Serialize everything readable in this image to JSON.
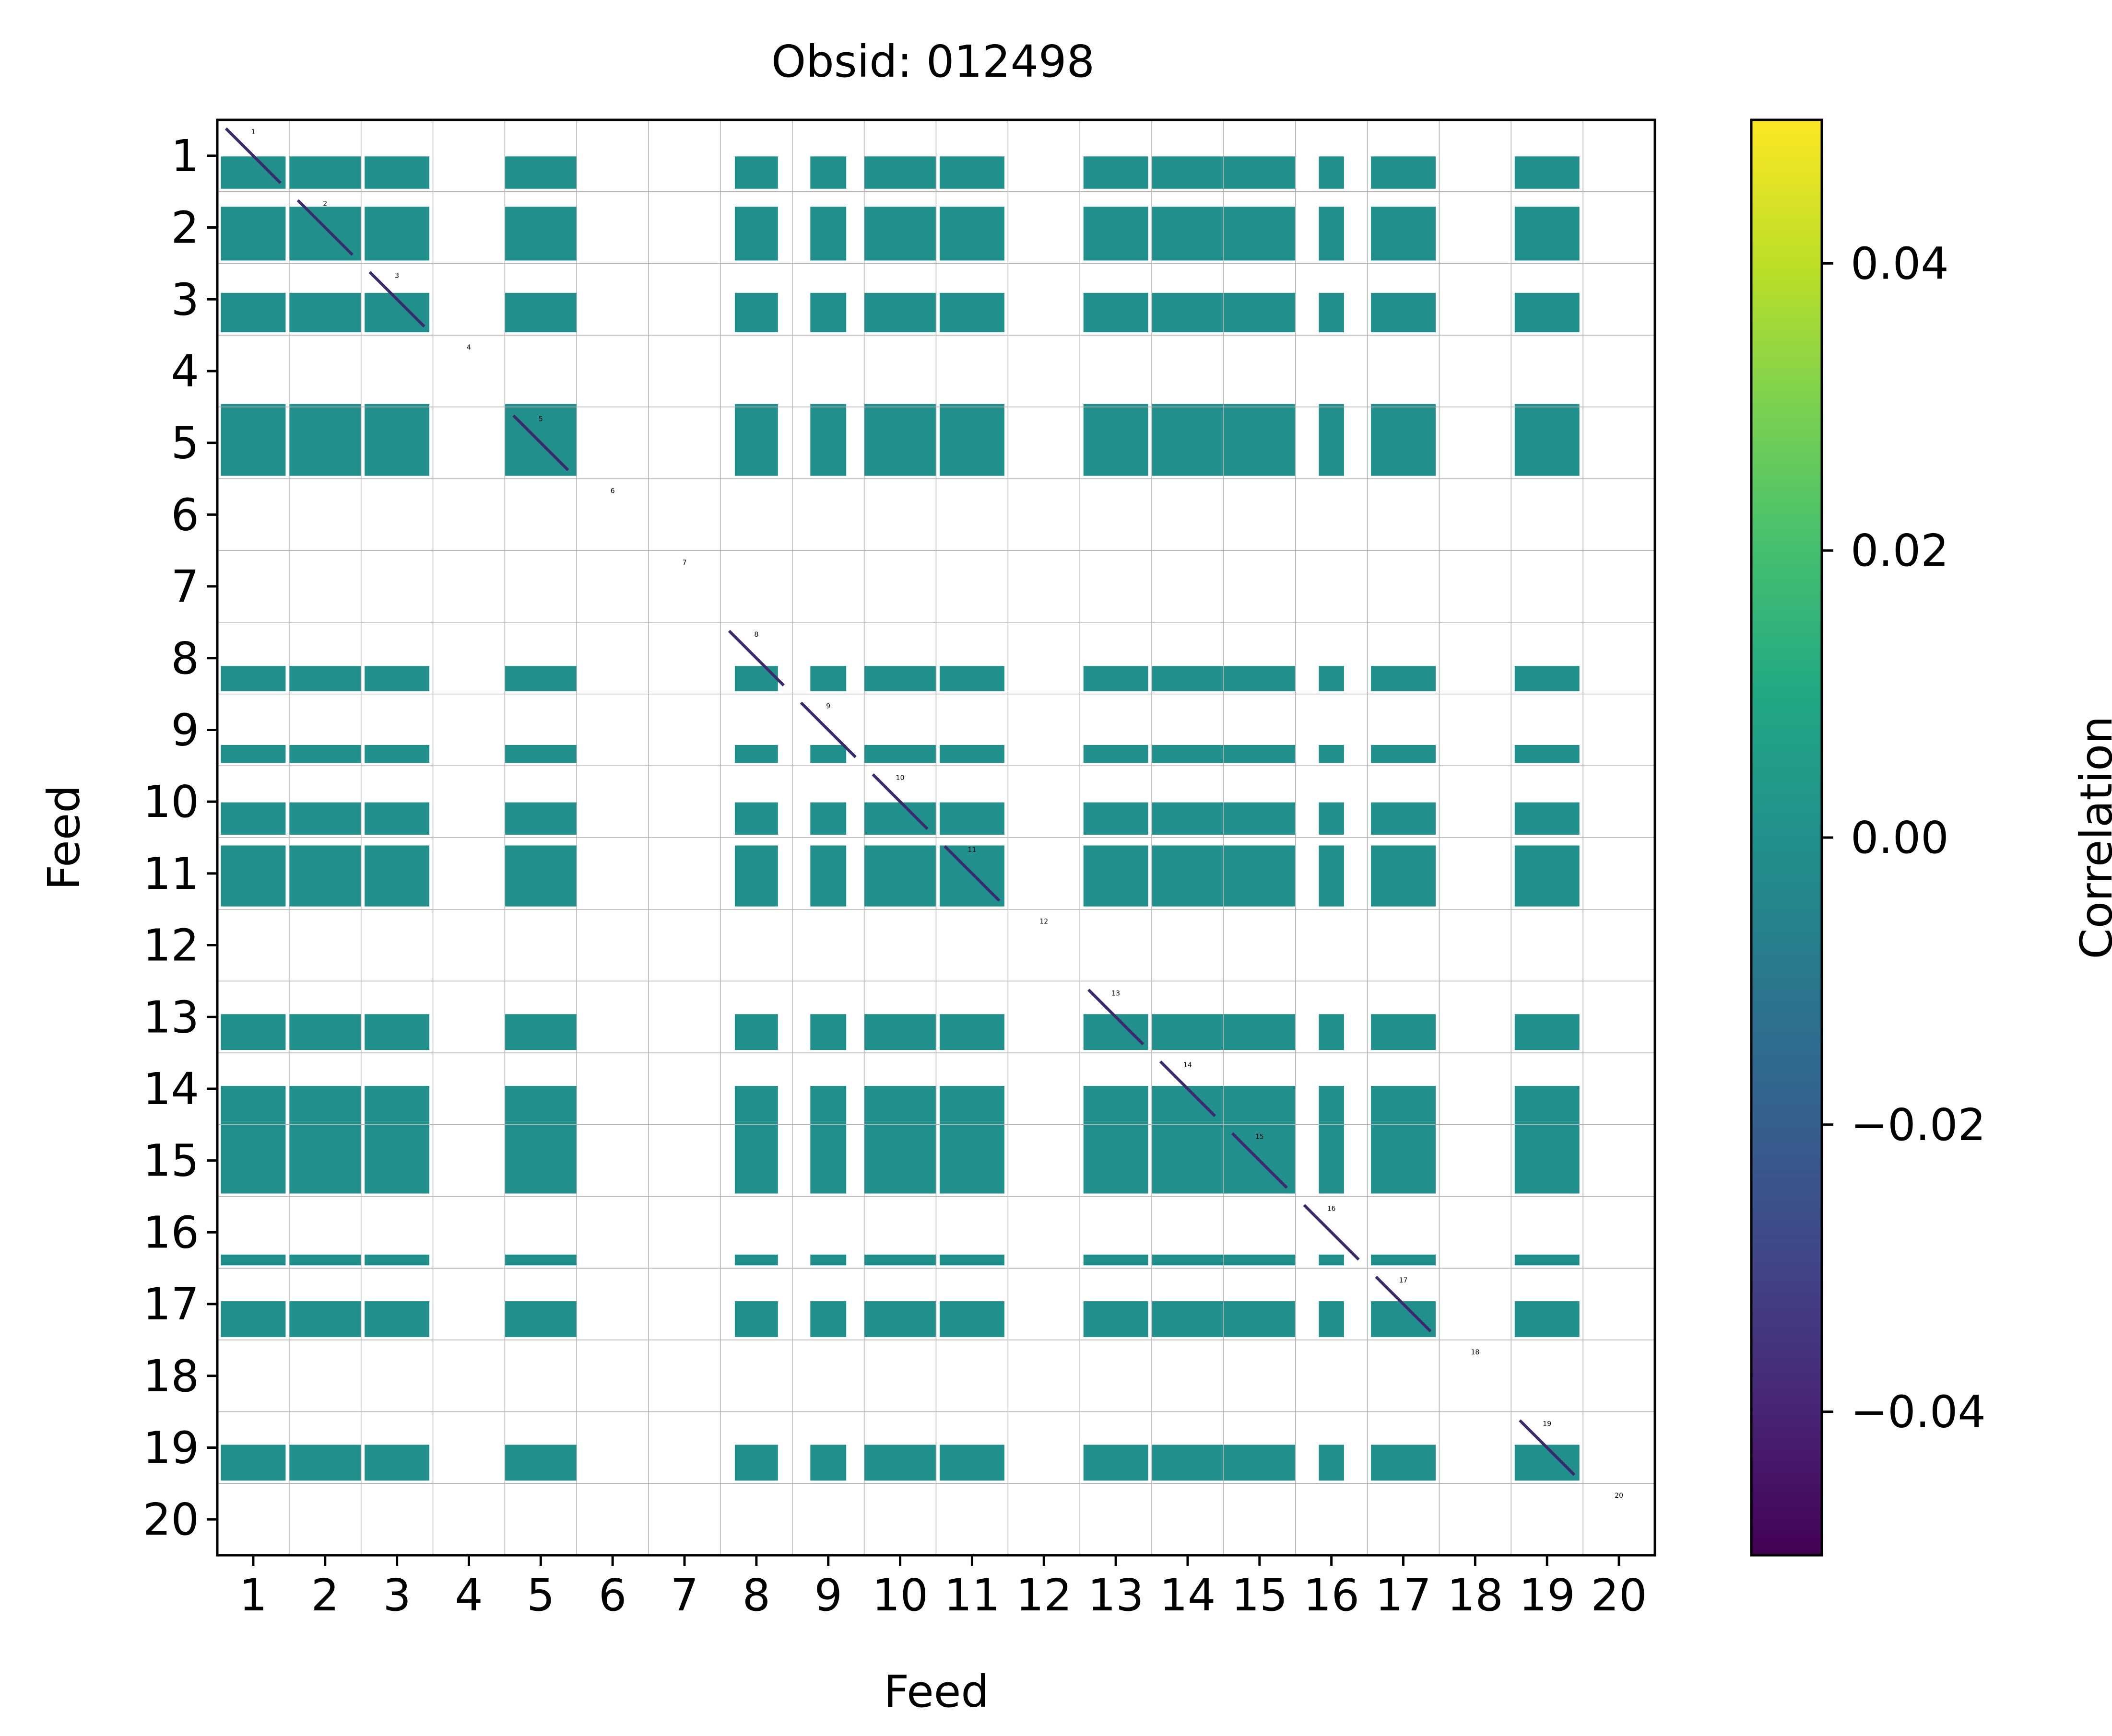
{
  "chart_data": {
    "type": "heatmap",
    "title": "Obsid: 012498",
    "xlabel": "Feed",
    "ylabel": "Feed",
    "feeds": [
      1,
      2,
      3,
      4,
      5,
      6,
      7,
      8,
      9,
      10,
      11,
      12,
      13,
      14,
      15,
      16,
      17,
      18,
      19,
      20
    ],
    "x_tick_labels": [
      "1",
      "2",
      "3",
      "4",
      "5",
      "6",
      "7",
      "8",
      "9",
      "10",
      "11",
      "12",
      "13",
      "14",
      "15",
      "16",
      "17",
      "18",
      "19",
      "20"
    ],
    "y_tick_labels": [
      "1",
      "2",
      "3",
      "4",
      "5",
      "6",
      "7",
      "8",
      "9",
      "10",
      "11",
      "12",
      "13",
      "14",
      "15",
      "16",
      "17",
      "18",
      "19",
      "20"
    ],
    "diagonal_labels": [
      "1",
      "2",
      "3",
      "4",
      "5",
      "6",
      "7",
      "8",
      "9",
      "10",
      "11",
      "12",
      "13",
      "14",
      "15",
      "16",
      "17",
      "18",
      "19",
      "20"
    ],
    "active_feeds": [
      1,
      2,
      3,
      5,
      8,
      9,
      10,
      11,
      13,
      14,
      15,
      16,
      17,
      19
    ],
    "inactive_feeds": [
      4,
      6,
      7,
      12,
      18,
      20
    ],
    "row_fill": {
      "1": 0.45,
      "2": 0.75,
      "3": 0.55,
      "5": 1.0,
      "8": 0.35,
      "9": 0.25,
      "10": 0.45,
      "11": 0.85,
      "13": 0.5,
      "14": 0.5,
      "15": 1.0,
      "16": 0.15,
      "17": 0.5,
      "19": 0.5
    },
    "column_fill": {
      "1": 0.9,
      "2": 1.0,
      "3": 0.9,
      "5": 1.0,
      "8": 0.6,
      "9": 0.5,
      "10": 1.0,
      "11": 0.9,
      "13": 0.9,
      "14": 1.0,
      "15": 1.0,
      "16": 0.35,
      "17": 0.9,
      "19": 0.9
    },
    "offdiagonal_value": 0.0,
    "colorbar": {
      "label": "Correlation",
      "colormap": "viridis",
      "vmin": -0.05,
      "vmax": 0.05,
      "ticks": [
        -0.04,
        -0.02,
        0.0,
        0.02,
        0.04
      ],
      "tick_labels": [
        "−0.04",
        "−0.02",
        "0.00",
        "0.02",
        "0.04"
      ]
    },
    "grid": true
  },
  "colors": {
    "cell": "#21908d",
    "diagonal": "#3b2a6b",
    "grid": "#b0b0b0",
    "background": "#ffffff"
  }
}
